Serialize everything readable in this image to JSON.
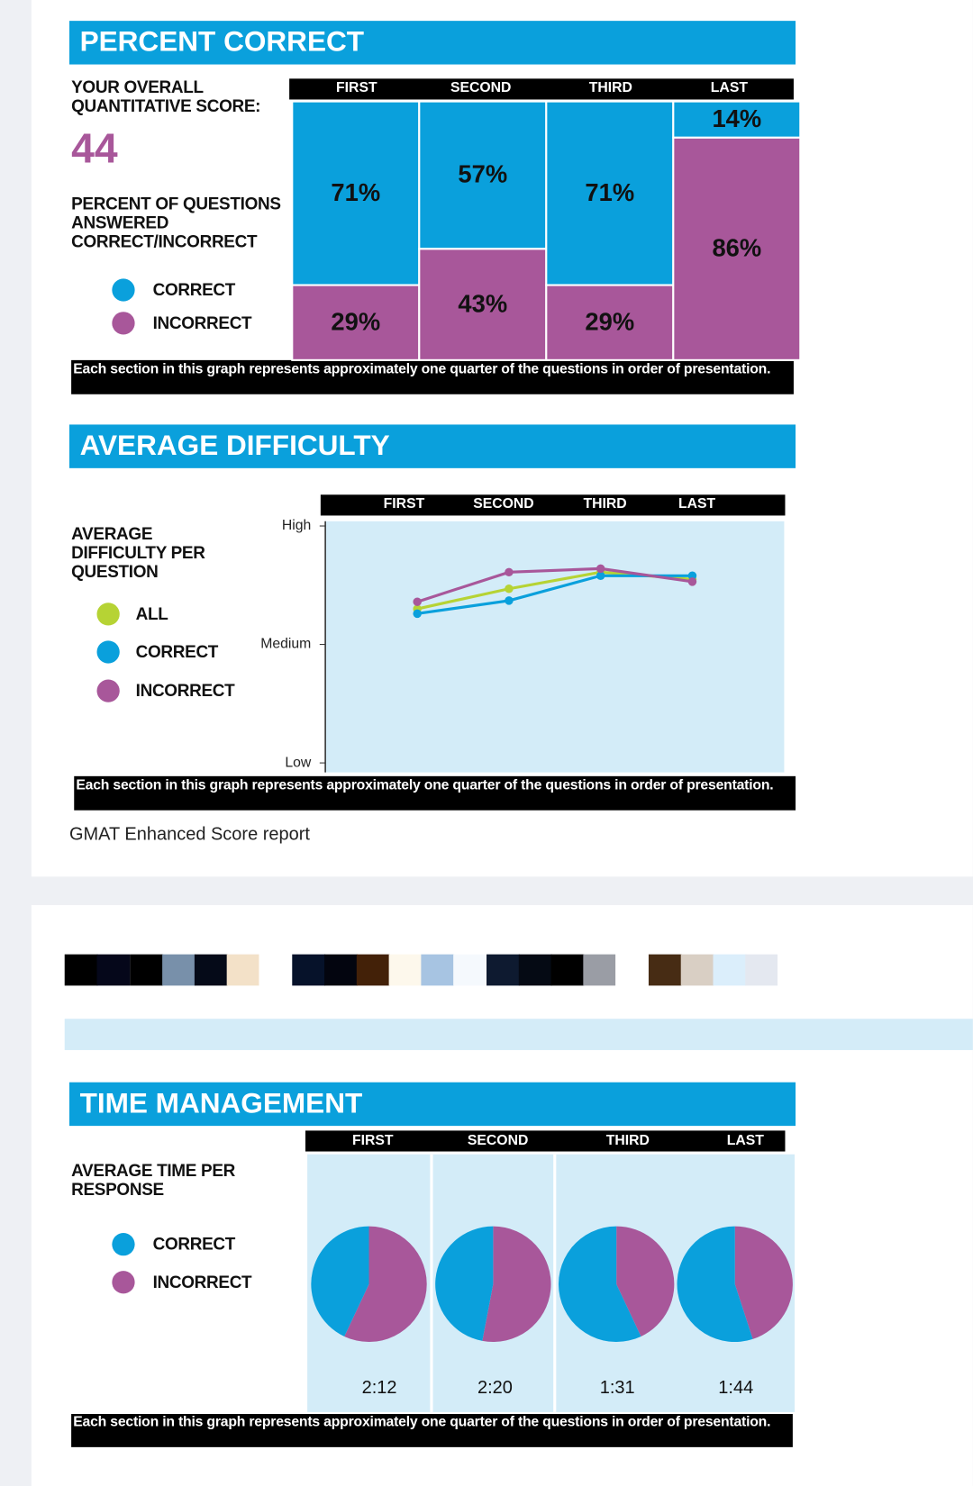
{
  "chart_data": [
    {
      "type": "bar",
      "stacked": true,
      "title": "PERCENT CORRECT",
      "score_label": "YOUR OVERALL QUANTITATIVE SCORE:",
      "score": 44,
      "description": "PERCENT OF QUESTIONS ANSWERED CORRECT/INCORRECT",
      "note": "Each section in this graph represents approximately one quarter of the questions in order of presentation.",
      "categories": [
        "FIRST",
        "SECOND",
        "THIRD",
        "LAST"
      ],
      "series": [
        {
          "name": "CORRECT",
          "color": "#0aa0dc",
          "values": [
            71,
            57,
            71,
            14
          ],
          "value_labels": [
            "71%",
            "57%",
            "71%",
            "14%"
          ]
        },
        {
          "name": "INCORRECT",
          "color": "#a8579a",
          "values": [
            29,
            43,
            29,
            86
          ],
          "value_labels": [
            "29%",
            "43%",
            "29%",
            "86%"
          ]
        }
      ]
    },
    {
      "type": "line",
      "title": "AVERAGE DIFFICULTY",
      "description": "AVERAGE DIFFICULTY PER QUESTION",
      "note": "Each section in this graph represents approximately one quarter of the questions in order of presentation.",
      "categories": [
        "FIRST",
        "SECOND",
        "THIRD",
        "LAST"
      ],
      "ylim": [
        -0.08,
        2.04
      ],
      "yticks": [
        {
          "value": 0,
          "label": "Low"
        },
        {
          "value": 1,
          "label": "Medium"
        },
        {
          "value": 2,
          "label": "High"
        }
      ],
      "series": [
        {
          "name": "ALL",
          "color": "#b6d334",
          "values": [
            1.3,
            1.47,
            1.61,
            1.55
          ]
        },
        {
          "name": "CORRECT",
          "color": "#0aa0dc",
          "values": [
            1.26,
            1.37,
            1.58,
            1.58
          ]
        },
        {
          "name": "INCORRECT",
          "color": "#a8579a",
          "values": [
            1.36,
            1.61,
            1.64,
            1.53
          ]
        }
      ]
    },
    {
      "type": "pie",
      "title": "TIME MANAGEMENT",
      "description": "AVERAGE TIME PER RESPONSE",
      "note": "Each section in this graph represents approximately one quarter of the questions in order of presentation.",
      "categories": [
        "FIRST",
        "SECOND",
        "THIRD",
        "LAST"
      ],
      "times": [
        "2:12",
        "2:20",
        "1:31",
        "1:44"
      ],
      "series": [
        {
          "name": "CORRECT",
          "color": "#0aa0dc",
          "values": [
            43,
            47,
            57,
            55
          ]
        },
        {
          "name": "INCORRECT",
          "color": "#a8579a",
          "values": [
            57,
            53,
            43,
            45
          ]
        }
      ]
    }
  ],
  "caption": "GMAT Enhanced Score report"
}
